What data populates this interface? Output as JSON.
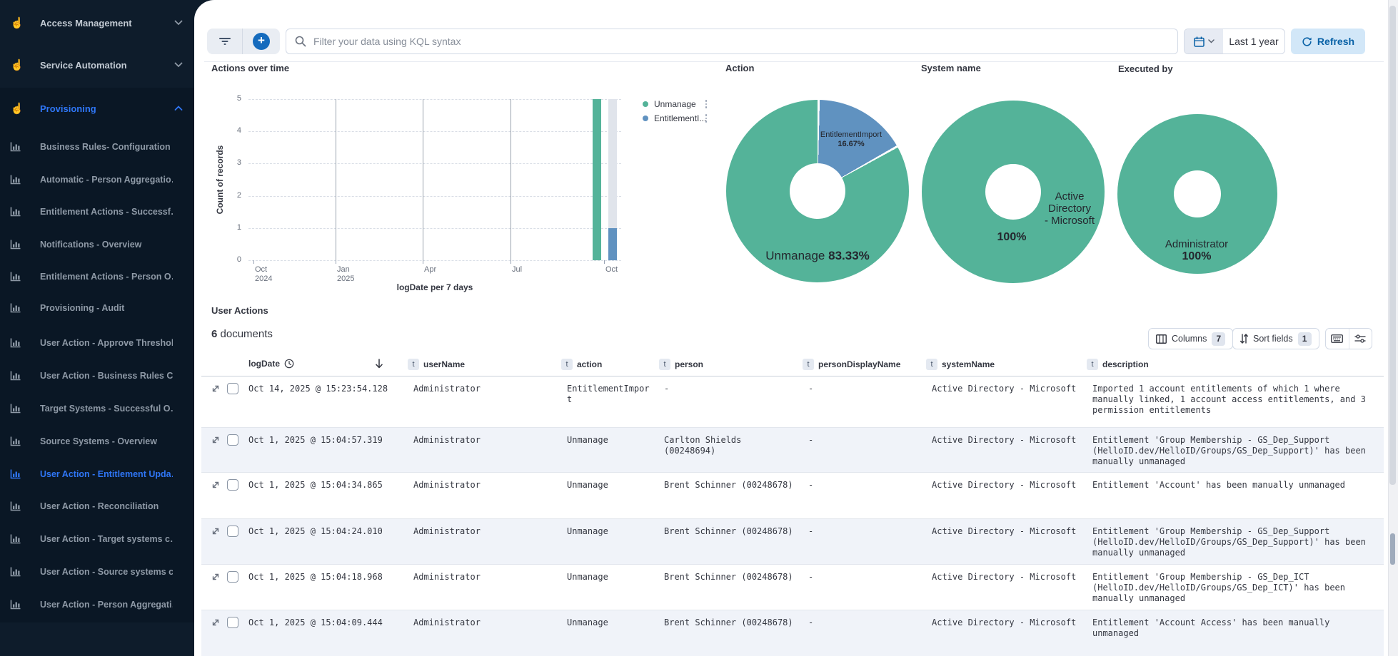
{
  "sidebar": {
    "top_items": [
      {
        "label": "Access Management"
      },
      {
        "label": "Service Automation"
      }
    ],
    "provisioning": {
      "label": "Provisioning",
      "items": [
        {
          "label": "Business Rules- Configuration …"
        },
        {
          "label": "Automatic - Person Aggregatio…"
        },
        {
          "label": "Entitlement Actions - Successf…"
        },
        {
          "label": "Notifications - Overview"
        },
        {
          "label": "Entitlement Actions - Person O…"
        },
        {
          "label": "Provisioning - Audit"
        },
        {
          "label": "User Action - Approve Threshol…"
        },
        {
          "label": "User Action - Business Rules C…"
        },
        {
          "label": "Target Systems - Successful O…"
        },
        {
          "label": "Source Systems - Overview"
        },
        {
          "label": "User Action - Entitlement Upda…",
          "active": true
        },
        {
          "label": "User Action - Reconciliation"
        },
        {
          "label": "User Action - Target systems c…"
        },
        {
          "label": "User Action - Source systems c…"
        },
        {
          "label": "User Action - Person Aggregati…"
        }
      ]
    },
    "active_color": "#2f76f6"
  },
  "topbar": {
    "search_placeholder": "Filter your data using KQL syntax",
    "time_range": "Last 1 year",
    "refresh_label": "Refresh"
  },
  "chart_data": {
    "bar_chart": {
      "type": "bar",
      "title": "Actions over time",
      "ylabel": "Count of records",
      "xlabel": "logDate per 7 days",
      "ylim": [
        0,
        5
      ],
      "grid": true,
      "legend_position": "right",
      "yticks": [
        "5",
        "4",
        "3",
        "2",
        "1",
        "0"
      ],
      "xticks": [
        {
          "l1": "Oct",
          "l2": "2024"
        },
        {
          "l1": "Jan",
          "l2": "2025"
        },
        {
          "l1": "Apr",
          "l2": ""
        },
        {
          "l1": "Jul",
          "l2": ""
        },
        {
          "l1": "Oct",
          "l2": ""
        }
      ],
      "series": [
        {
          "name": "Unmanage",
          "x": "Oct 2025",
          "value": 5,
          "color": "#54b399"
        },
        {
          "name": "EntitlementImport",
          "x": "Oct 2025",
          "value": 1,
          "color": "#6092c0"
        }
      ],
      "legend": [
        {
          "label": "Unmanage"
        },
        {
          "label": "EntitlementI..."
        }
      ]
    },
    "donuts": [
      {
        "title": "Action",
        "slices": [
          {
            "label": "EntitlementImport",
            "pct": 16.67,
            "color": "#6092c0"
          },
          {
            "label": "Unmanage",
            "pct": 83.33,
            "color": "#54b399"
          }
        ],
        "small_label": {
          "line1": "EntitlementImport",
          "line2": "16.67%"
        },
        "big_label": {
          "name": "Unmanage ",
          "pct": "83.33%"
        }
      },
      {
        "title": "System name",
        "slices": [
          {
            "label": "Active Directory - Microsoft",
            "pct": 100,
            "color": "#54b399"
          }
        ],
        "center_label": {
          "lines": [
            "Active",
            "Directory",
            "- Microsoft"
          ],
          "pct": "100%"
        }
      },
      {
        "title": "Executed by",
        "slices": [
          {
            "label": "Administrator",
            "pct": 100,
            "color": "#54b399"
          }
        ],
        "center_label": {
          "lines": [
            "Administrator"
          ],
          "pct": "100%"
        }
      }
    ]
  },
  "table": {
    "section_title": "User Actions",
    "count": "6",
    "count_suffix": " documents",
    "columns_button": {
      "label": "Columns",
      "count": "7"
    },
    "sort_button": {
      "label": "Sort fields",
      "count": "1"
    },
    "headers": {
      "logDate": "logDate",
      "userName": "userName",
      "action": "action",
      "person": "person",
      "personDisplayName": "personDisplayName",
      "systemName": "systemName",
      "description": "description"
    },
    "rows": [
      {
        "logDate": "Oct 14, 2025 @ 15:23:54.128",
        "userName": "Administrator",
        "action": "EntitlementImport",
        "person": "-",
        "personDisplayName": "-",
        "systemName": "Active Directory - Microsoft",
        "description": "Imported 1 account entitlements of which 1 where manually linked, 1 account access entitlements, and 3 permission entitlements"
      },
      {
        "logDate": "Oct 1, 2025 @ 15:04:57.319",
        "userName": "Administrator",
        "action": "Unmanage",
        "person": "Carlton Shields (00248694)",
        "personDisplayName": "-",
        "systemName": "Active Directory - Microsoft",
        "description": "Entitlement 'Group Membership - GS_Dep_Support (HelloID.dev/HelloID/Groups/GS_Dep_Support)' has been manually unmanaged"
      },
      {
        "logDate": "Oct 1, 2025 @ 15:04:34.865",
        "userName": "Administrator",
        "action": "Unmanage",
        "person": "Brent Schinner (00248678)",
        "personDisplayName": "-",
        "systemName": "Active Directory - Microsoft",
        "description": "Entitlement 'Account' has been manually unmanaged"
      },
      {
        "logDate": "Oct 1, 2025 @ 15:04:24.010",
        "userName": "Administrator",
        "action": "Unmanage",
        "person": "Brent Schinner (00248678)",
        "personDisplayName": "-",
        "systemName": "Active Directory - Microsoft",
        "description": "Entitlement 'Group Membership - GS_Dep_Support (HelloID.dev/HelloID/Groups/GS_Dep_Support)' has been manually unmanaged"
      },
      {
        "logDate": "Oct 1, 2025 @ 15:04:18.968",
        "userName": "Administrator",
        "action": "Unmanage",
        "person": "Brent Schinner (00248678)",
        "personDisplayName": "-",
        "systemName": "Active Directory - Microsoft",
        "description": "Entitlement 'Group Membership - GS_Dep_ICT (HelloID.dev/HelloID/Groups/GS_Dep_ICT)' has been manually unmanaged"
      },
      {
        "logDate": "Oct 1, 2025 @ 15:04:09.444",
        "userName": "Administrator",
        "action": "Unmanage",
        "person": "Brent Schinner (00248678)",
        "personDisplayName": "-",
        "systemName": "Active Directory - Microsoft",
        "description": "Entitlement 'Account Access' has been manually unmanaged"
      }
    ]
  }
}
